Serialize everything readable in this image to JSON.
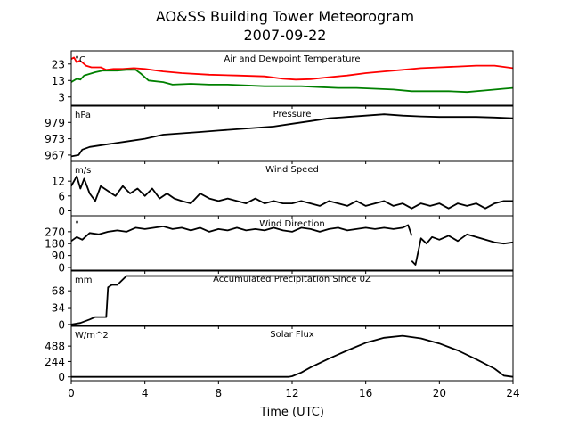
{
  "chart_data": {
    "type": "line",
    "title": "AO&SS Building Tower Meteorogram",
    "subtitle": "2007-09-22",
    "xlabel": "Time (UTC)",
    "x_ticks": [
      0,
      4,
      8,
      12,
      16,
      20,
      24
    ],
    "xlim": [
      0,
      24
    ],
    "panels": [
      {
        "name": "temperature",
        "title": "Air and Dewpoint Temperature",
        "unit": "°C",
        "ylim": [
          -2,
          31
        ],
        "y_ticks": [
          3,
          13,
          23
        ],
        "series": [
          {
            "color": "#ff0000",
            "points": [
              [
                0,
                26
              ],
              [
                0.15,
                27
              ],
              [
                0.3,
                24
              ],
              [
                0.45,
                25
              ],
              [
                0.6,
                24
              ],
              [
                0.8,
                22
              ],
              [
                1.1,
                21
              ],
              [
                1.6,
                21
              ],
              [
                1.9,
                19.5
              ],
              [
                2.3,
                20
              ],
              [
                2.8,
                20
              ],
              [
                3.4,
                20.5
              ],
              [
                4,
                20
              ],
              [
                5,
                18.5
              ],
              [
                6,
                17.5
              ],
              [
                7.5,
                16.5
              ],
              [
                9,
                16
              ],
              [
                10.5,
                15.5
              ],
              [
                11.5,
                14
              ],
              [
                12.2,
                13.5
              ],
              [
                13,
                13.8
              ],
              [
                14,
                15
              ],
              [
                15,
                16
              ],
              [
                16,
                17.5
              ],
              [
                17,
                18.5
              ],
              [
                18,
                19.5
              ],
              [
                19,
                20.5
              ],
              [
                20,
                21
              ],
              [
                21,
                21.5
              ],
              [
                22,
                22
              ],
              [
                23,
                22
              ],
              [
                24,
                20.5
              ]
            ]
          },
          {
            "color": "#008000",
            "points": [
              [
                0,
                12
              ],
              [
                0.3,
                14
              ],
              [
                0.5,
                13.5
              ],
              [
                0.7,
                16
              ],
              [
                1,
                17
              ],
              [
                1.3,
                18
              ],
              [
                1.7,
                19
              ],
              [
                2.5,
                19
              ],
              [
                3,
                19.5
              ],
              [
                3.5,
                19.5
              ],
              [
                3.8,
                17
              ],
              [
                4.2,
                13
              ],
              [
                5,
                12
              ],
              [
                5.5,
                10.5
              ],
              [
                6.5,
                11
              ],
              [
                7.5,
                10.5
              ],
              [
                8.5,
                10.5
              ],
              [
                9.5,
                10
              ],
              [
                10.5,
                9.5
              ],
              [
                11.5,
                9.5
              ],
              [
                12.5,
                9.5
              ],
              [
                13.5,
                9
              ],
              [
                14.5,
                8.5
              ],
              [
                15.5,
                8.5
              ],
              [
                16.5,
                8
              ],
              [
                17.5,
                7.5
              ],
              [
                18.5,
                6.5
              ],
              [
                19.5,
                6.5
              ],
              [
                20.5,
                6.5
              ],
              [
                21.5,
                6
              ],
              [
                22.5,
                7
              ],
              [
                23.5,
                8
              ],
              [
                24,
                8.5
              ]
            ]
          }
        ]
      },
      {
        "name": "pressure",
        "title": "Pressure",
        "unit": "hPa",
        "ylim": [
          965,
          985
        ],
        "y_ticks": [
          967,
          973,
          979
        ],
        "series": [
          {
            "color": "#000000",
            "points": [
              [
                0,
                966.5
              ],
              [
                0.4,
                967
              ],
              [
                0.6,
                969
              ],
              [
                1,
                970
              ],
              [
                2,
                971
              ],
              [
                3,
                972
              ],
              [
                4,
                973
              ],
              [
                5,
                974.5
              ],
              [
                6,
                975
              ],
              [
                7,
                975.5
              ],
              [
                8,
                976
              ],
              [
                9,
                976.5
              ],
              [
                10,
                977
              ],
              [
                11,
                977.5
              ],
              [
                12,
                978.5
              ],
              [
                13,
                979.5
              ],
              [
                14,
                980.5
              ],
              [
                15,
                981
              ],
              [
                16,
                981.5
              ],
              [
                17,
                982
              ],
              [
                18,
                981.5
              ],
              [
                19,
                981.2
              ],
              [
                20,
                981
              ],
              [
                21,
                981
              ],
              [
                22,
                981
              ],
              [
                23,
                980.8
              ],
              [
                24,
                980.5
              ]
            ]
          }
        ]
      },
      {
        "name": "wind_speed",
        "title": "Wind Speed",
        "unit": "m/s",
        "ylim": [
          -2,
          20
        ],
        "y_ticks": [
          0,
          6,
          12
        ],
        "series": [
          {
            "color": "#000000",
            "points": [
              [
                0,
                10
              ],
              [
                0.3,
                14
              ],
              [
                0.5,
                9
              ],
              [
                0.7,
                13
              ],
              [
                1,
                7
              ],
              [
                1.3,
                4
              ],
              [
                1.6,
                10
              ],
              [
                2,
                8
              ],
              [
                2.4,
                6
              ],
              [
                2.8,
                10
              ],
              [
                3.2,
                7
              ],
              [
                3.6,
                9
              ],
              [
                4,
                6
              ],
              [
                4.4,
                9
              ],
              [
                4.8,
                5
              ],
              [
                5.2,
                7
              ],
              [
                5.6,
                5
              ],
              [
                6,
                4
              ],
              [
                6.5,
                3
              ],
              [
                7,
                7
              ],
              [
                7.5,
                5
              ],
              [
                8,
                4
              ],
              [
                8.5,
                5
              ],
              [
                9,
                4
              ],
              [
                9.5,
                3
              ],
              [
                10,
                5
              ],
              [
                10.5,
                3
              ],
              [
                11,
                4
              ],
              [
                11.5,
                3
              ],
              [
                12,
                3
              ],
              [
                12.5,
                4
              ],
              [
                13,
                3
              ],
              [
                13.5,
                2
              ],
              [
                14,
                4
              ],
              [
                14.5,
                3
              ],
              [
                15,
                2
              ],
              [
                15.5,
                4
              ],
              [
                16,
                2
              ],
              [
                16.5,
                3
              ],
              [
                17,
                4
              ],
              [
                17.5,
                2
              ],
              [
                18,
                3
              ],
              [
                18.5,
                1
              ],
              [
                19,
                3
              ],
              [
                19.5,
                2
              ],
              [
                20,
                3
              ],
              [
                20.5,
                1
              ],
              [
                21,
                3
              ],
              [
                21.5,
                2
              ],
              [
                22,
                3
              ],
              [
                22.5,
                1
              ],
              [
                23,
                3
              ],
              [
                23.5,
                4
              ],
              [
                24,
                4
              ]
            ]
          }
        ]
      },
      {
        "name": "wind_direction",
        "title": "Wind Direction",
        "unit": "°",
        "ylim": [
          -20,
          390
        ],
        "y_ticks": [
          0,
          90,
          180,
          270
        ],
        "series": [
          {
            "color": "#000000",
            "points": [
              [
                0,
                200
              ],
              [
                0.3,
                230
              ],
              [
                0.6,
                210
              ],
              [
                1,
                260
              ],
              [
                1.5,
                250
              ],
              [
                2,
                270
              ],
              [
                2.5,
                280
              ],
              [
                3,
                270
              ],
              [
                3.5,
                300
              ],
              [
                4,
                290
              ],
              [
                4.5,
                300
              ],
              [
                5,
                310
              ],
              [
                5.5,
                290
              ],
              [
                6,
                300
              ],
              [
                6.5,
                280
              ],
              [
                7,
                300
              ],
              [
                7.5,
                270
              ],
              [
                8,
                290
              ],
              [
                8.5,
                280
              ],
              [
                9,
                300
              ],
              [
                9.5,
                280
              ],
              [
                10,
                290
              ],
              [
                10.5,
                280
              ],
              [
                11,
                300
              ],
              [
                11.5,
                280
              ],
              [
                12,
                270
              ],
              [
                12.5,
                300
              ],
              [
                13,
                290
              ],
              [
                13.5,
                270
              ],
              [
                14,
                290
              ],
              [
                14.5,
                300
              ],
              [
                15,
                280
              ],
              [
                15.5,
                290
              ],
              [
                16,
                300
              ],
              [
                16.5,
                290
              ],
              [
                17,
                300
              ],
              [
                17.5,
                290
              ],
              [
                18,
                300
              ],
              [
                18.3,
                320
              ],
              [
                18.5,
                240
              ]
            ]
          },
          {
            "color": "#000000",
            "points": [
              [
                18.5,
                50
              ],
              [
                18.7,
                20
              ],
              [
                19,
                220
              ],
              [
                19.3,
                180
              ],
              [
                19.6,
                230
              ],
              [
                20,
                210
              ],
              [
                20.5,
                240
              ],
              [
                21,
                200
              ],
              [
                21.5,
                250
              ],
              [
                22,
                230
              ],
              [
                22.5,
                210
              ],
              [
                23,
                190
              ],
              [
                23.5,
                180
              ],
              [
                24,
                190
              ]
            ]
          }
        ]
      },
      {
        "name": "precipitation",
        "title": "Accumulated Precipitation Since 0Z",
        "unit": "mm",
        "ylim": [
          -2,
          108
        ],
        "y_ticks": [
          0,
          34,
          68
        ],
        "series": [
          {
            "color": "#000000",
            "points": [
              [
                0,
                0
              ],
              [
                0.5,
                3
              ],
              [
                1,
                10
              ],
              [
                1.3,
                15
              ],
              [
                1.9,
                15
              ],
              [
                2,
                75
              ],
              [
                2.2,
                80
              ],
              [
                2.5,
                80
              ],
              [
                3,
                98
              ],
              [
                24,
                98
              ]
            ]
          }
        ]
      },
      {
        "name": "solar_flux",
        "title": "Solar Flux",
        "unit": "W/m^2",
        "ylim": [
          -60,
          800
        ],
        "y_ticks": [
          0,
          244,
          488
        ],
        "series": [
          {
            "color": "#000000",
            "points": [
              [
                0,
                0
              ],
              [
                11.8,
                0
              ],
              [
                12,
                10
              ],
              [
                12.5,
                70
              ],
              [
                13,
                150
              ],
              [
                14,
                290
              ],
              [
                15,
                420
              ],
              [
                16,
                540
              ],
              [
                17,
                620
              ],
              [
                18,
                650
              ],
              [
                19,
                610
              ],
              [
                20,
                530
              ],
              [
                21,
                420
              ],
              [
                22,
                280
              ],
              [
                23,
                130
              ],
              [
                23.5,
                20
              ],
              [
                24,
                0
              ]
            ]
          }
        ]
      }
    ]
  }
}
